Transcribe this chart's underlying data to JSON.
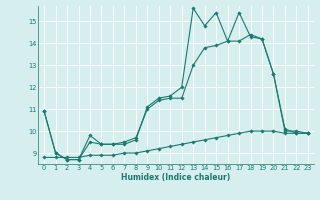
{
  "title": "",
  "xlabel": "Humidex (Indice chaleur)",
  "background_color": "#d6eeee",
  "grid_color": "#ffffff",
  "line_color": "#1a7a6e",
  "xlim": [
    -0.5,
    23.5
  ],
  "ylim": [
    8.5,
    15.7
  ],
  "yticks": [
    9,
    10,
    11,
    12,
    13,
    14,
    15
  ],
  "xticks": [
    0,
    1,
    2,
    3,
    4,
    5,
    6,
    7,
    8,
    9,
    10,
    11,
    12,
    13,
    14,
    15,
    16,
    17,
    18,
    19,
    20,
    21,
    22,
    23
  ],
  "series1_x": [
    0,
    1,
    2,
    3,
    4,
    5,
    6,
    7,
    8,
    9,
    10,
    11,
    12,
    13,
    14,
    15,
    16,
    17,
    18,
    19,
    20,
    21,
    22,
    23
  ],
  "series1_y": [
    10.9,
    9.0,
    8.7,
    8.7,
    9.8,
    9.4,
    9.4,
    9.4,
    9.6,
    11.1,
    11.5,
    11.6,
    12.0,
    15.6,
    14.8,
    15.4,
    14.1,
    15.4,
    14.3,
    14.2,
    12.6,
    10.1,
    9.9,
    9.9
  ],
  "series2_x": [
    0,
    1,
    2,
    3,
    4,
    5,
    6,
    7,
    8,
    9,
    10,
    11,
    12,
    13,
    14,
    15,
    16,
    17,
    18,
    19,
    20,
    21,
    22,
    23
  ],
  "series2_y": [
    10.9,
    9.0,
    8.7,
    8.7,
    9.5,
    9.4,
    9.4,
    9.5,
    9.7,
    11.0,
    11.4,
    11.5,
    11.5,
    13.0,
    13.8,
    13.9,
    14.1,
    14.1,
    14.4,
    14.2,
    12.6,
    10.0,
    10.0,
    9.9
  ],
  "series3_x": [
    0,
    1,
    2,
    3,
    4,
    5,
    6,
    7,
    8,
    9,
    10,
    11,
    12,
    13,
    14,
    15,
    16,
    17,
    18,
    19,
    20,
    21,
    22,
    23
  ],
  "series3_y": [
    8.8,
    8.8,
    8.8,
    8.8,
    8.9,
    8.9,
    8.9,
    9.0,
    9.0,
    9.1,
    9.2,
    9.3,
    9.4,
    9.5,
    9.6,
    9.7,
    9.8,
    9.9,
    10.0,
    10.0,
    10.0,
    9.9,
    9.9,
    9.9
  ],
  "xlabel_fontsize": 5.5,
  "tick_fontsize": 4.8,
  "marker_size": 1.8,
  "line_width": 0.8
}
